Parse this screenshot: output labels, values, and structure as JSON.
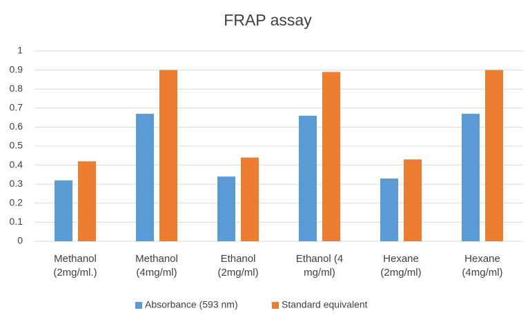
{
  "chart_data": {
    "type": "bar",
    "title": "FRAP assay",
    "categories": [
      "Methanol (2mg/ml.)",
      "Methanol (4mg/ml)",
      "Ethanol (2mg/ml)",
      "Ethanol (4 mg/ml)",
      "Hexane (2mg/ml)",
      "Hexane (4mg/ml)"
    ],
    "series": [
      {
        "name": "Absorbance (593 nm)",
        "color": "#5b9bd5",
        "values": [
          0.32,
          0.67,
          0.34,
          0.66,
          0.33,
          0.67
        ]
      },
      {
        "name": "Standard equivalent",
        "color": "#ed7d31",
        "values": [
          0.42,
          0.9,
          0.44,
          0.89,
          0.43,
          0.9
        ]
      }
    ],
    "ylim": [
      0,
      1
    ],
    "yticks": [
      0,
      0.1,
      0.2,
      0.3,
      0.4,
      0.5,
      0.6,
      0.7,
      0.8,
      0.9,
      1
    ],
    "grid": true,
    "legend": "bottom"
  }
}
